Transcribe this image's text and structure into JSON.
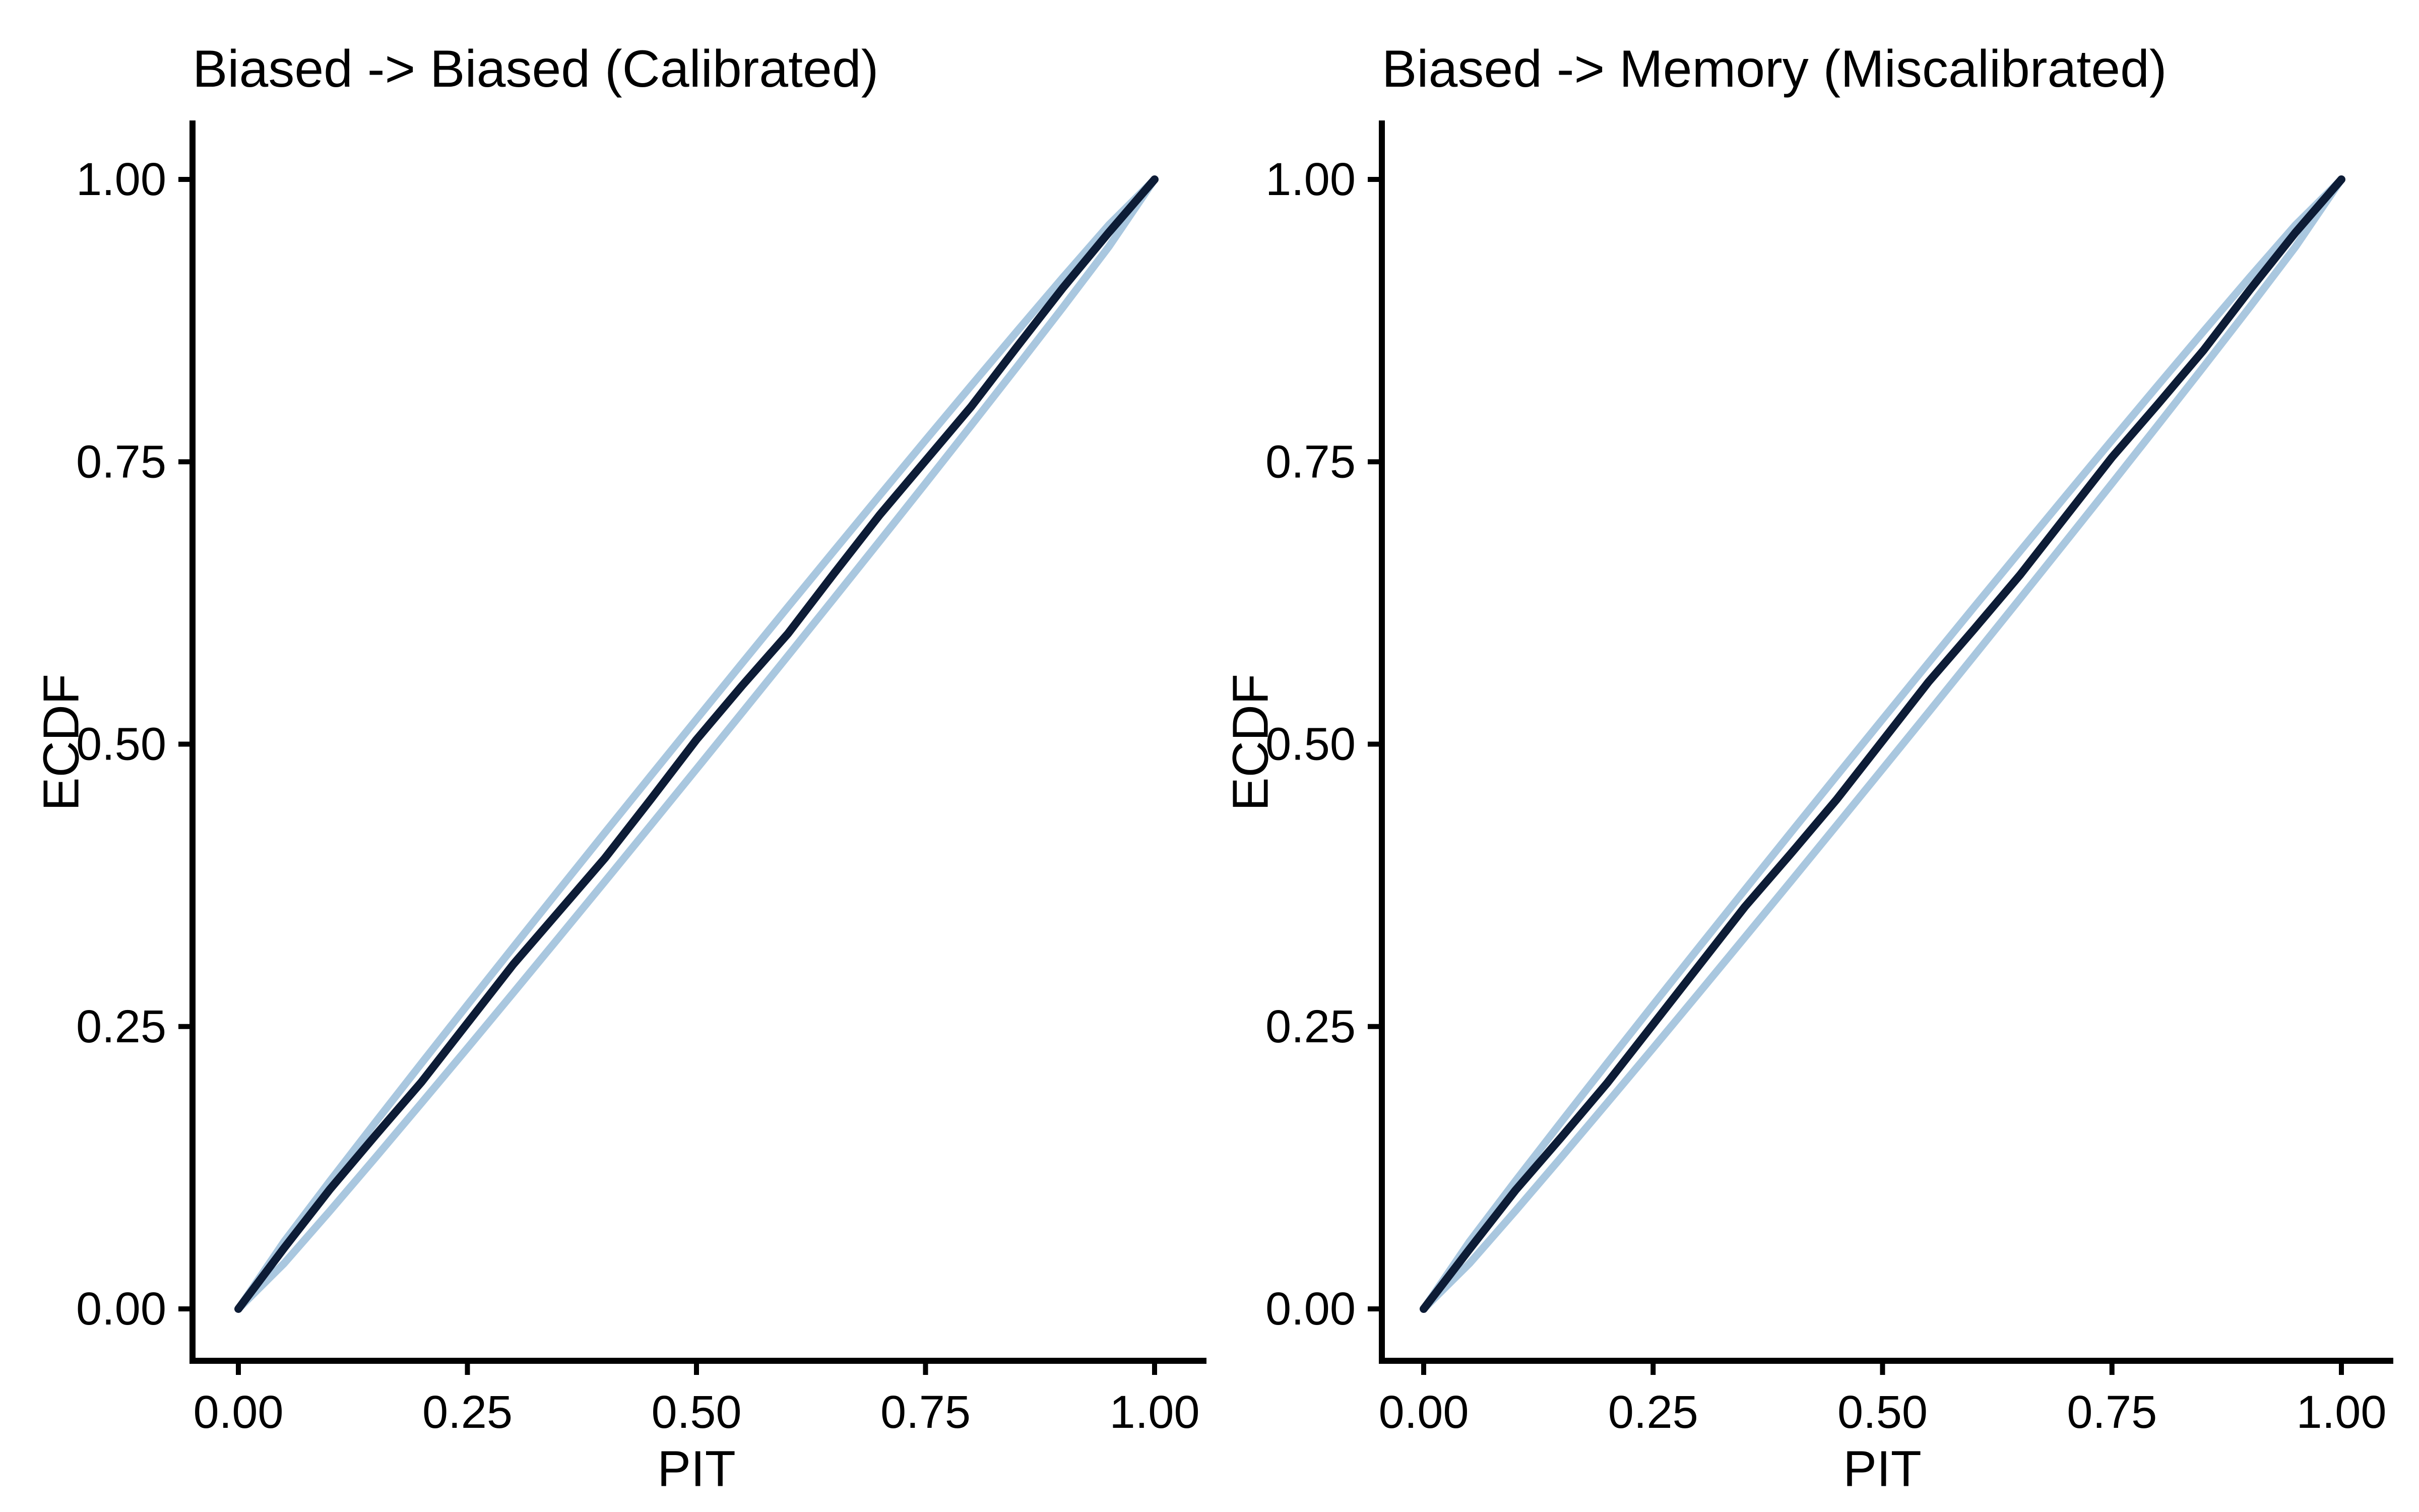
{
  "figure": {
    "background": "#ffffff",
    "text_color": "#000000",
    "axis_color": "#000000"
  },
  "chart_data": [
    {
      "type": "line",
      "title": "Biased -> Biased (Calibrated)",
      "xlabel": "PIT",
      "ylabel": "ECDF",
      "xlim": [
        0,
        1
      ],
      "ylim": [
        0,
        1
      ],
      "grid": false,
      "legend": "none",
      "xticks": {
        "values": [
          0,
          0.25,
          0.5,
          0.75,
          1
        ],
        "labels": [
          "0.00",
          "0.25",
          "0.50",
          "0.75",
          "1.00"
        ]
      },
      "yticks": {
        "values": [
          0,
          0.25,
          0.5,
          0.75,
          1
        ],
        "labels": [
          "0.00",
          "0.25",
          "0.50",
          "0.75",
          "1.00"
        ]
      },
      "x": [
        0,
        0.05,
        0.1,
        0.15,
        0.2,
        0.25,
        0.3,
        0.35,
        0.4,
        0.45,
        0.5,
        0.55,
        0.6,
        0.65,
        0.7,
        0.75,
        0.8,
        0.85,
        0.9,
        0.95,
        1
      ],
      "series": [
        {
          "name": "confidence-band-upper",
          "color": "#a9c7df",
          "width": 15,
          "y": [
            0,
            0.0596,
            0.1132,
            0.1657,
            0.2176,
            0.2691,
            0.3202,
            0.371,
            0.4216,
            0.4719,
            0.522,
            0.5719,
            0.6216,
            0.671,
            0.7202,
            0.7691,
            0.8176,
            0.8657,
            0.9132,
            0.9596,
            1
          ]
        },
        {
          "name": "confidence-band-lower",
          "color": "#a9c7df",
          "width": 15,
          "y": [
            0,
            0.0404,
            0.0868,
            0.1343,
            0.1824,
            0.2309,
            0.2798,
            0.329,
            0.3784,
            0.4281,
            0.478,
            0.5281,
            0.5784,
            0.629,
            0.6798,
            0.7309,
            0.7824,
            0.8343,
            0.8868,
            0.9404,
            1
          ]
        },
        {
          "name": "ecdf",
          "color": "#0d1c36",
          "width": 16,
          "y": [
            0,
            0.054,
            0.106,
            0.154,
            0.201,
            0.253,
            0.305,
            0.352,
            0.399,
            0.451,
            0.504,
            0.552,
            0.598,
            0.651,
            0.703,
            0.751,
            0.799,
            0.852,
            0.904,
            0.953,
            1
          ]
        }
      ]
    },
    {
      "type": "line",
      "title": "Biased -> Memory (Miscalibrated)",
      "xlabel": "PIT",
      "ylabel": "ECDF",
      "xlim": [
        0,
        1
      ],
      "ylim": [
        0,
        1
      ],
      "grid": false,
      "legend": "none",
      "xticks": {
        "values": [
          0,
          0.25,
          0.5,
          0.75,
          1
        ],
        "labels": [
          "0.00",
          "0.25",
          "0.50",
          "0.75",
          "1.00"
        ]
      },
      "yticks": {
        "values": [
          0,
          0.25,
          0.5,
          0.75,
          1
        ],
        "labels": [
          "0.00",
          "0.25",
          "0.50",
          "0.75",
          "1.00"
        ]
      },
      "x": [
        0,
        0.05,
        0.1,
        0.15,
        0.2,
        0.25,
        0.3,
        0.35,
        0.4,
        0.45,
        0.5,
        0.55,
        0.6,
        0.65,
        0.7,
        0.75,
        0.8,
        0.85,
        0.9,
        0.95,
        1
      ],
      "series": [
        {
          "name": "confidence-band-upper",
          "color": "#a9c7df",
          "width": 15,
          "y": [
            0,
            0.0596,
            0.1132,
            0.1657,
            0.2176,
            0.2691,
            0.3202,
            0.371,
            0.4216,
            0.4719,
            0.522,
            0.5719,
            0.6216,
            0.671,
            0.7202,
            0.7691,
            0.8176,
            0.8657,
            0.9132,
            0.9596,
            1
          ]
        },
        {
          "name": "confidence-band-lower",
          "color": "#a9c7df",
          "width": 15,
          "y": [
            0,
            0.0404,
            0.0868,
            0.1343,
            0.1824,
            0.2309,
            0.2798,
            0.329,
            0.3784,
            0.4281,
            0.478,
            0.5281,
            0.5784,
            0.629,
            0.6798,
            0.7309,
            0.7824,
            0.8343,
            0.8868,
            0.9404,
            1
          ]
        },
        {
          "name": "ecdf",
          "color": "#0d1c36",
          "width": 16,
          "y": [
            0,
            0.053,
            0.105,
            0.152,
            0.2,
            0.252,
            0.304,
            0.356,
            0.403,
            0.451,
            0.503,
            0.555,
            0.602,
            0.65,
            0.702,
            0.754,
            0.801,
            0.849,
            0.902,
            0.953,
            1
          ]
        }
      ]
    }
  ]
}
